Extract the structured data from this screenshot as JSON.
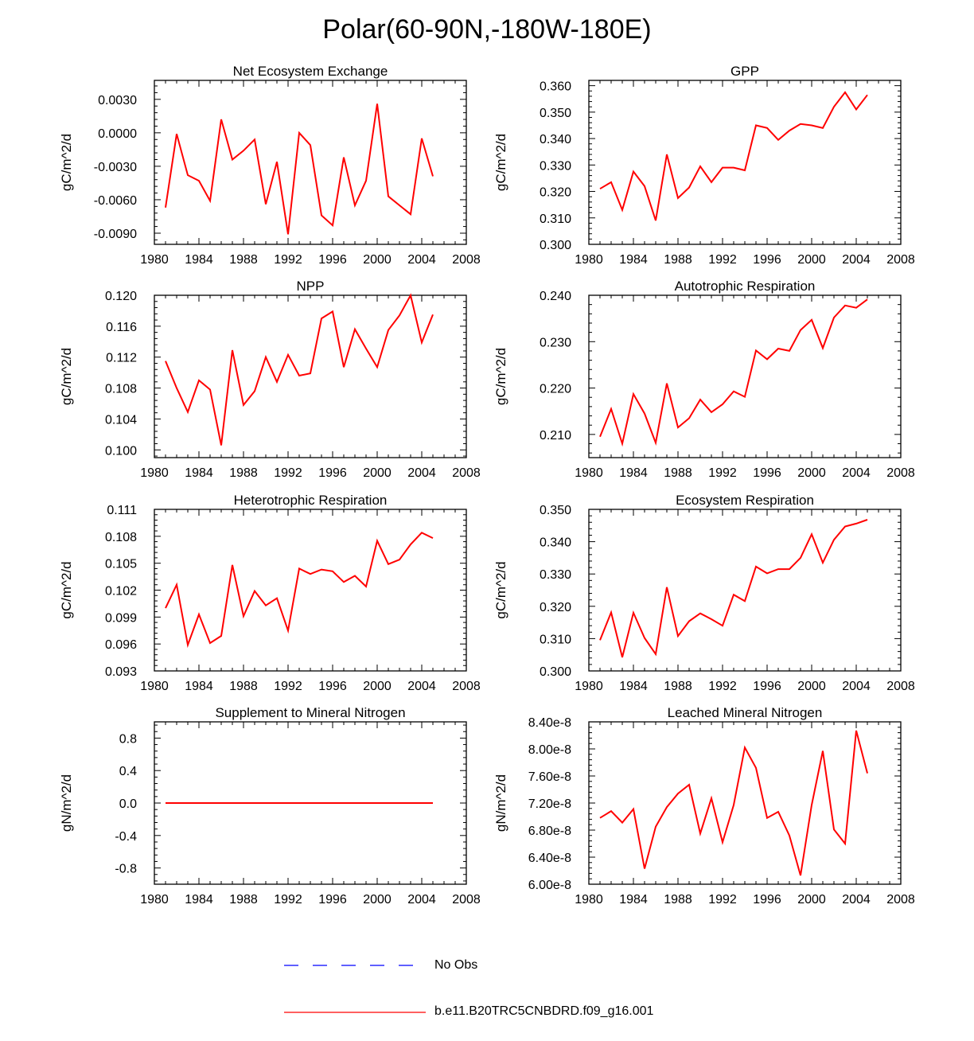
{
  "page": {
    "title": "Polar(60-90N,-180W-180E)"
  },
  "legend": {
    "entries": [
      {
        "label": "No Obs",
        "color": "#0000ff",
        "style": "dashed"
      },
      {
        "label": "b.e11.B20TRC5CNBDRD.f09_g16.001",
        "color": "#ff0000",
        "style": "solid"
      }
    ]
  },
  "chart_data": [
    {
      "type": "line",
      "title": "Net Ecosystem Exchange",
      "ylabel": "gC/m^2/d",
      "xlim": [
        1980,
        2008
      ],
      "ylim": [
        -0.01,
        0.0047
      ],
      "xticks": [
        1980,
        1984,
        1988,
        1992,
        1996,
        2000,
        2004,
        2008
      ],
      "yticks": [
        -0.009,
        -0.006,
        -0.003,
        0.0,
        0.003
      ],
      "ytick_labels": [
        "-0.0090",
        "-0.0060",
        "-0.0030",
        "0.0000",
        "0.0030"
      ],
      "series": [
        {
          "name": "b.e11.B20TRC5CNBDRD.f09_g16.001",
          "color": "#ff0000",
          "x": [
            1981,
            1982,
            1983,
            1984,
            1985,
            1986,
            1987,
            1988,
            1989,
            1990,
            1991,
            1992,
            1993,
            1994,
            1995,
            1996,
            1997,
            1998,
            1999,
            2000,
            2001,
            2002,
            2003,
            2004,
            2005
          ],
          "values": [
            -0.0067,
            -0.0001,
            -0.0038,
            -0.0043,
            -0.0061,
            0.0012,
            -0.0024,
            -0.0016,
            -0.0006,
            -0.0064,
            -0.0026,
            -0.0091,
            -0.0,
            -0.0011,
            -0.0074,
            -0.0083,
            -0.0022,
            -0.0065,
            -0.0043,
            0.0026,
            -0.0057,
            -0.0065,
            -0.0073,
            -0.0005,
            -0.0039
          ]
        }
      ]
    },
    {
      "type": "line",
      "title": "GPP",
      "ylabel": "gC/m^2/d",
      "xlim": [
        1980,
        2008
      ],
      "ylim": [
        0.3,
        0.362
      ],
      "xticks": [
        1980,
        1984,
        1988,
        1992,
        1996,
        2000,
        2004,
        2008
      ],
      "yticks": [
        0.3,
        0.31,
        0.32,
        0.33,
        0.34,
        0.35,
        0.36
      ],
      "ytick_labels": [
        "0.300",
        "0.310",
        "0.320",
        "0.330",
        "0.340",
        "0.350",
        "0.360"
      ],
      "series": [
        {
          "name": "b.e11.B20TRC5CNBDRD.f09_g16.001",
          "color": "#ff0000",
          "x": [
            1981,
            1982,
            1983,
            1984,
            1985,
            1986,
            1987,
            1988,
            1989,
            1990,
            1991,
            1992,
            1993,
            1994,
            1995,
            1996,
            1997,
            1998,
            1999,
            2000,
            2001,
            2002,
            2003,
            2004,
            2005
          ],
          "values": [
            0.321,
            0.3235,
            0.313,
            0.3275,
            0.322,
            0.309,
            0.334,
            0.3175,
            0.3215,
            0.3295,
            0.3235,
            0.329,
            0.329,
            0.328,
            0.345,
            0.344,
            0.3395,
            0.343,
            0.3455,
            0.345,
            0.344,
            0.352,
            0.3575,
            0.351,
            0.3565
          ]
        }
      ]
    },
    {
      "type": "line",
      "title": "NPP",
      "ylabel": "gC/m^2/d",
      "xlim": [
        1980,
        2008
      ],
      "ylim": [
        0.099,
        0.12
      ],
      "xticks": [
        1980,
        1984,
        1988,
        1992,
        1996,
        2000,
        2004,
        2008
      ],
      "yticks": [
        0.1,
        0.104,
        0.108,
        0.112,
        0.116,
        0.12
      ],
      "ytick_labels": [
        "0.100",
        "0.104",
        "0.108",
        "0.112",
        "0.116",
        "0.120"
      ],
      "series": [
        {
          "name": "b.e11.B20TRC5CNBDRD.f09_g16.001",
          "color": "#ff0000",
          "x": [
            1981,
            1982,
            1983,
            1984,
            1985,
            1986,
            1987,
            1988,
            1989,
            1990,
            1991,
            1992,
            1993,
            1994,
            1995,
            1996,
            1997,
            1998,
            1999,
            2000,
            2001,
            2002,
            2003,
            2004,
            2005
          ],
          "values": [
            0.1115,
            0.108,
            0.1049,
            0.109,
            0.1078,
            0.1006,
            0.1129,
            0.1058,
            0.1076,
            0.112,
            0.1088,
            0.1123,
            0.1096,
            0.1099,
            0.117,
            0.1179,
            0.1107,
            0.1156,
            0.1131,
            0.1107,
            0.1155,
            0.1174,
            0.12,
            0.1139,
            0.1175
          ]
        }
      ]
    },
    {
      "type": "line",
      "title": "Autotrophic Respiration",
      "ylabel": "gC/m^2/d",
      "xlim": [
        1980,
        2008
      ],
      "ylim": [
        0.205,
        0.24
      ],
      "xticks": [
        1980,
        1984,
        1988,
        1992,
        1996,
        2000,
        2004,
        2008
      ],
      "yticks": [
        0.21,
        0.22,
        0.23,
        0.24
      ],
      "ytick_labels": [
        "0.210",
        "0.220",
        "0.230",
        "0.240"
      ],
      "series": [
        {
          "name": "b.e11.B20TRC5CNBDRD.f09_g16.001",
          "color": "#ff0000",
          "x": [
            1981,
            1982,
            1983,
            1984,
            1985,
            1986,
            1987,
            1988,
            1989,
            1990,
            1991,
            1992,
            1993,
            1994,
            1995,
            1996,
            1997,
            1998,
            1999,
            2000,
            2001,
            2002,
            2003,
            2004,
            2005
          ],
          "values": [
            0.2095,
            0.2155,
            0.208,
            0.2187,
            0.2145,
            0.2082,
            0.221,
            0.2115,
            0.2135,
            0.2175,
            0.2148,
            0.2165,
            0.2193,
            0.2181,
            0.2281,
            0.2262,
            0.2285,
            0.228,
            0.2325,
            0.2347,
            0.2286,
            0.2352,
            0.2378,
            0.2373,
            0.2391
          ]
        }
      ]
    },
    {
      "type": "line",
      "title": "Heterotrophic Respiration",
      "ylabel": "gC/m^2/d",
      "xlim": [
        1980,
        2008
      ],
      "ylim": [
        0.093,
        0.111
      ],
      "xticks": [
        1980,
        1984,
        1988,
        1992,
        1996,
        2000,
        2004,
        2008
      ],
      "yticks": [
        0.093,
        0.096,
        0.099,
        0.102,
        0.105,
        0.108,
        0.111
      ],
      "ytick_labels": [
        "0.093",
        "0.096",
        "0.099",
        "0.102",
        "0.105",
        "0.108",
        "0.111"
      ],
      "series": [
        {
          "name": "b.e11.B20TRC5CNBDRD.f09_g16.001",
          "color": "#ff0000",
          "x": [
            1981,
            1982,
            1983,
            1984,
            1985,
            1986,
            1987,
            1988,
            1989,
            1990,
            1991,
            1992,
            1993,
            1994,
            1995,
            1996,
            1997,
            1998,
            1999,
            2000,
            2001,
            2002,
            2003,
            2004,
            2005
          ],
          "values": [
            0.1,
            0.1026,
            0.0959,
            0.0993,
            0.0961,
            0.0969,
            0.1048,
            0.0991,
            0.1019,
            0.1003,
            0.1011,
            0.0975,
            0.1044,
            0.1038,
            0.1043,
            0.1041,
            0.1029,
            0.1036,
            0.1024,
            0.1075,
            0.1049,
            0.1054,
            0.1071,
            0.1084,
            0.1078
          ]
        }
      ]
    },
    {
      "type": "line",
      "title": "Ecosystem Respiration",
      "ylabel": "gC/m^2/d",
      "xlim": [
        1980,
        2008
      ],
      "ylim": [
        0.3,
        0.35
      ],
      "xticks": [
        1980,
        1984,
        1988,
        1992,
        1996,
        2000,
        2004,
        2008
      ],
      "yticks": [
        0.3,
        0.31,
        0.32,
        0.33,
        0.34,
        0.35
      ],
      "ytick_labels": [
        "0.300",
        "0.310",
        "0.320",
        "0.330",
        "0.340",
        "0.350"
      ],
      "series": [
        {
          "name": "b.e11.B20TRC5CNBDRD.f09_g16.001",
          "color": "#ff0000",
          "x": [
            1981,
            1982,
            1983,
            1984,
            1985,
            1986,
            1987,
            1988,
            1989,
            1990,
            1991,
            1992,
            1993,
            1994,
            1995,
            1996,
            1997,
            1998,
            1999,
            2000,
            2001,
            2002,
            2003,
            2004,
            2005
          ],
          "values": [
            0.3095,
            0.3181,
            0.3042,
            0.318,
            0.3102,
            0.3052,
            0.3259,
            0.3108,
            0.3154,
            0.3178,
            0.316,
            0.314,
            0.3236,
            0.3216,
            0.3323,
            0.3302,
            0.3315,
            0.3315,
            0.335,
            0.3423,
            0.3335,
            0.3406,
            0.3447,
            0.3456,
            0.3468
          ]
        }
      ]
    },
    {
      "type": "line",
      "title": "Supplement to Mineral Nitrogen",
      "ylabel": "gN/m^2/d",
      "xlim": [
        1980,
        2008
      ],
      "ylim": [
        -1.0,
        1.0
      ],
      "xticks": [
        1980,
        1984,
        1988,
        1992,
        1996,
        2000,
        2004,
        2008
      ],
      "yticks": [
        -0.8,
        -0.4,
        0.0,
        0.4,
        0.8
      ],
      "ytick_labels": [
        "-0.8",
        "-0.4",
        "0.0",
        "0.4",
        "0.8"
      ],
      "series": [
        {
          "name": "b.e11.B20TRC5CNBDRD.f09_g16.001",
          "color": "#ff0000",
          "x": [
            1981,
            1982,
            1983,
            1984,
            1985,
            1986,
            1987,
            1988,
            1989,
            1990,
            1991,
            1992,
            1993,
            1994,
            1995,
            1996,
            1997,
            1998,
            1999,
            2000,
            2001,
            2002,
            2003,
            2004,
            2005
          ],
          "values": [
            0,
            0,
            0,
            0,
            0,
            0,
            0,
            0,
            0,
            0,
            0,
            0,
            0,
            0,
            0,
            0,
            0,
            0,
            0,
            0,
            0,
            0,
            0,
            0,
            0
          ]
        }
      ]
    },
    {
      "type": "line",
      "title": "Leached Mineral Nitrogen",
      "ylabel": "gN/m^2/d",
      "xlim": [
        1980,
        2008
      ],
      "ylim": [
        6e-08,
        8.4e-08
      ],
      "xticks": [
        1980,
        1984,
        1988,
        1992,
        1996,
        2000,
        2004,
        2008
      ],
      "yticks": [
        6e-08,
        6.4e-08,
        6.8e-08,
        7.2e-08,
        7.6e-08,
        8e-08,
        8.4e-08
      ],
      "ytick_labels": [
        "6.00e-8",
        "6.40e-8",
        "6.80e-8",
        "7.20e-8",
        "7.60e-8",
        "8.00e-8",
        "8.40e-8"
      ],
      "series": [
        {
          "name": "b.e11.B20TRC5CNBDRD.f09_g16.001",
          "color": "#ff0000",
          "x": [
            1981,
            1982,
            1983,
            1984,
            1985,
            1986,
            1987,
            1988,
            1989,
            1990,
            1991,
            1992,
            1993,
            1994,
            1995,
            1996,
            1997,
            1998,
            1999,
            2000,
            2001,
            2002,
            2003,
            2004,
            2005
          ],
          "values": [
            6.98e-08,
            7.08e-08,
            6.91e-08,
            7.11e-08,
            6.23e-08,
            6.85e-08,
            7.14e-08,
            7.34e-08,
            7.47e-08,
            6.75e-08,
            7.27e-08,
            6.62e-08,
            7.17e-08,
            8.02e-08,
            7.72e-08,
            6.98e-08,
            7.07e-08,
            6.72e-08,
            6.13e-08,
            7.17e-08,
            7.97e-08,
            6.81e-08,
            6.6e-08,
            8.27e-08,
            7.64e-08
          ]
        }
      ]
    }
  ]
}
